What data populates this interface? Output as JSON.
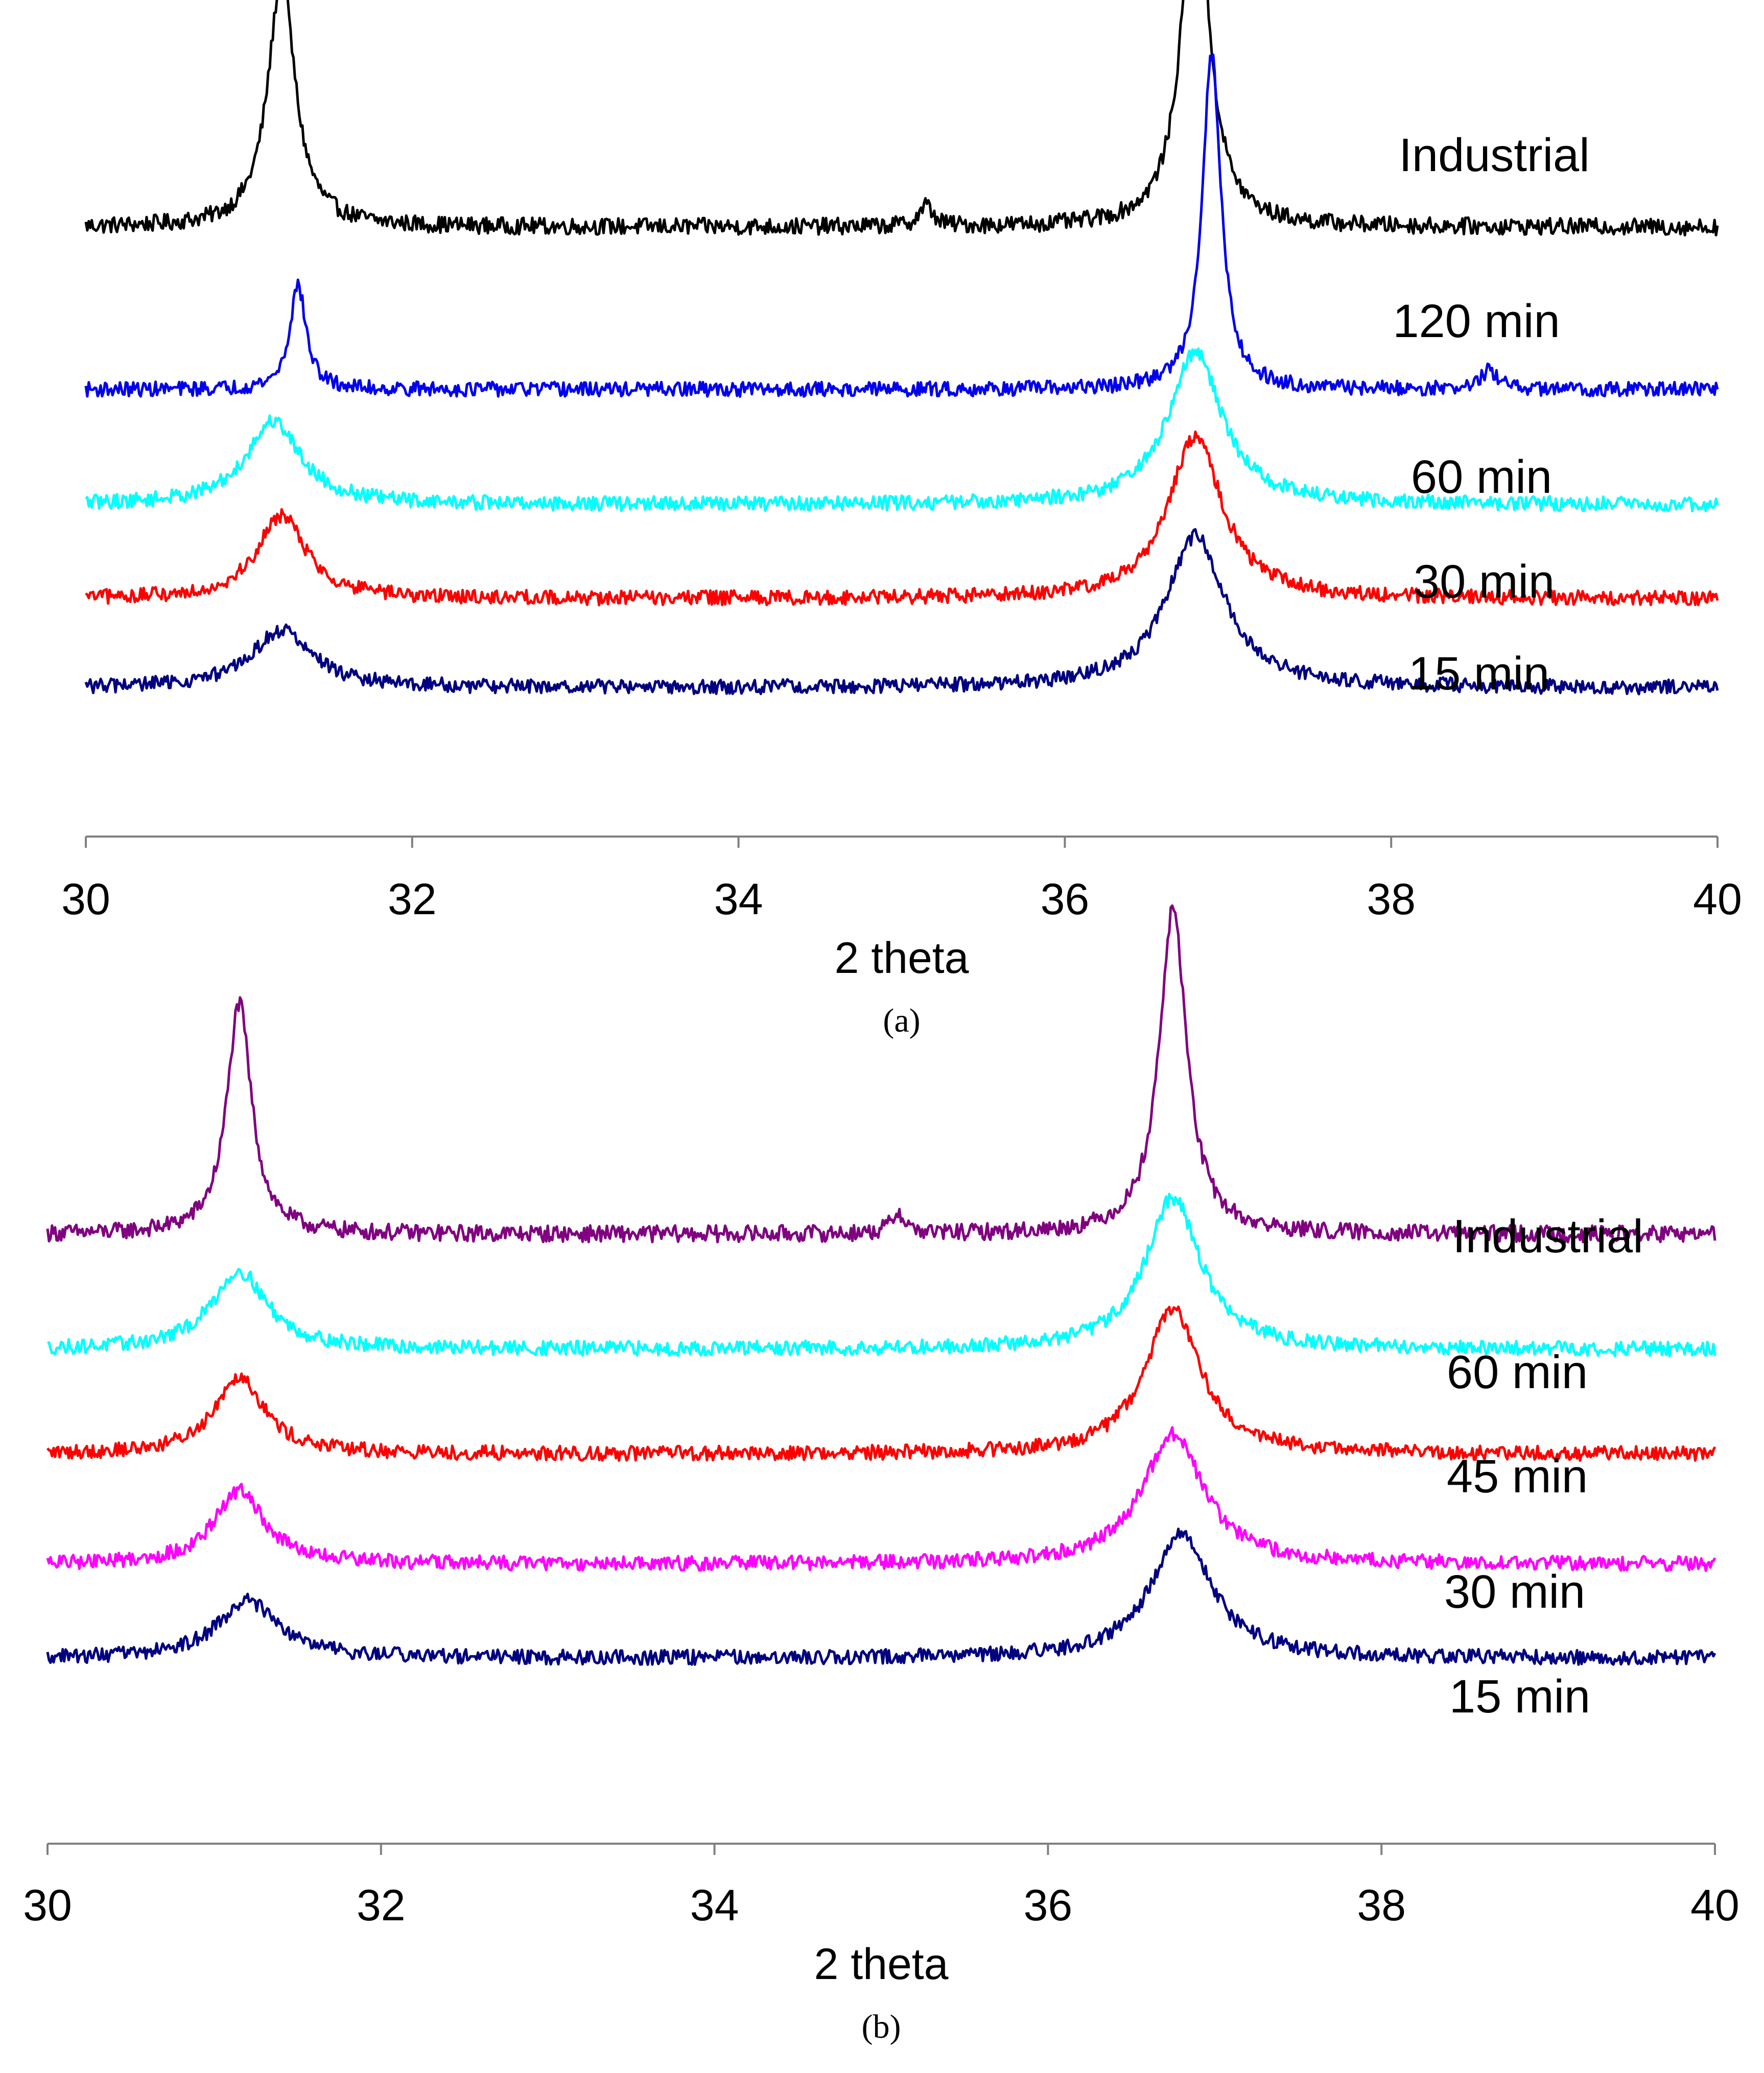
{
  "chart_data": [
    {
      "type": "line",
      "panel_label": "(a)",
      "xlabel": "2 theta",
      "ylabel": "",
      "xlim": [
        30,
        40
      ],
      "x_ticks": [
        30,
        32,
        34,
        36,
        38,
        40
      ],
      "y_axis_visible": false,
      "grid": false,
      "series": [
        {
          "name": "Industrial",
          "color": "#000000",
          "baseline": 4.6,
          "noise": 0.08,
          "peaks": [
            {
              "pos": 31.2,
              "height": 2.4,
              "width": 0.1
            },
            {
              "pos": 35.15,
              "height": 0.2,
              "width": 0.05
            },
            {
              "pos": 36.8,
              "height": 3.4,
              "width": 0.1
            }
          ]
        },
        {
          "name": "120 min",
          "color": "#0000ee",
          "baseline": 3.05,
          "noise": 0.07,
          "peaks": [
            {
              "pos": 31.3,
              "height": 1.0,
              "width": 0.06
            },
            {
              "pos": 36.9,
              "height": 3.2,
              "width": 0.07
            },
            {
              "pos": 38.6,
              "height": 0.18,
              "width": 0.06
            }
          ]
        },
        {
          "name": "60 min",
          "color": "#00ffff",
          "baseline": 1.95,
          "noise": 0.07,
          "peaks": [
            {
              "pos": 31.15,
              "height": 0.8,
              "width": 0.2
            },
            {
              "pos": 36.8,
              "height": 1.45,
              "width": 0.2
            }
          ]
        },
        {
          "name": "30 min",
          "color": "#ff0000",
          "baseline": 1.05,
          "noise": 0.07,
          "peaks": [
            {
              "pos": 31.2,
              "height": 0.8,
              "width": 0.18
            },
            {
              "pos": 36.8,
              "height": 1.55,
              "width": 0.2
            }
          ]
        },
        {
          "name": "15 min",
          "color": "#000080",
          "baseline": 0.2,
          "noise": 0.07,
          "peaks": [
            {
              "pos": 31.2,
              "height": 0.55,
              "width": 0.22
            },
            {
              "pos": 36.8,
              "height": 1.45,
              "width": 0.22
            }
          ]
        }
      ]
    },
    {
      "type": "line",
      "panel_label": "(b)",
      "xlabel": "2 theta",
      "ylabel": "",
      "xlim": [
        30,
        40
      ],
      "x_ticks": [
        30,
        32,
        34,
        36,
        38,
        40
      ],
      "y_axis_visible": false,
      "grid": false,
      "series": [
        {
          "name": "Industrial",
          "color": "#800080",
          "baseline": 4.6,
          "noise": 0.08,
          "peaks": [
            {
              "pos": 31.15,
              "height": 2.2,
              "width": 0.09
            },
            {
              "pos": 35.1,
              "height": 0.2,
              "width": 0.05
            },
            {
              "pos": 36.75,
              "height": 3.1,
              "width": 0.1
            }
          ]
        },
        {
          "name": "60 min",
          "color": "#00ffff",
          "baseline": 3.5,
          "noise": 0.07,
          "peaks": [
            {
              "pos": 31.15,
              "height": 0.75,
              "width": 0.2
            },
            {
              "pos": 36.75,
              "height": 1.45,
              "width": 0.2
            }
          ]
        },
        {
          "name": "45 min",
          "color": "#ff0000",
          "baseline": 2.5,
          "noise": 0.07,
          "peaks": [
            {
              "pos": 31.15,
              "height": 0.75,
              "width": 0.18
            },
            {
              "pos": 36.75,
              "height": 1.4,
              "width": 0.2
            }
          ]
        },
        {
          "name": "30 min",
          "color": "#ff00ff",
          "baseline": 1.45,
          "noise": 0.07,
          "peaks": [
            {
              "pos": 31.15,
              "height": 0.7,
              "width": 0.18
            },
            {
              "pos": 36.75,
              "height": 1.25,
              "width": 0.22
            }
          ]
        },
        {
          "name": "15 min",
          "color": "#000080",
          "baseline": 0.55,
          "noise": 0.07,
          "peaks": [
            {
              "pos": 31.2,
              "height": 0.55,
              "width": 0.22
            },
            {
              "pos": 36.8,
              "height": 1.2,
              "width": 0.22
            }
          ]
        }
      ]
    }
  ]
}
